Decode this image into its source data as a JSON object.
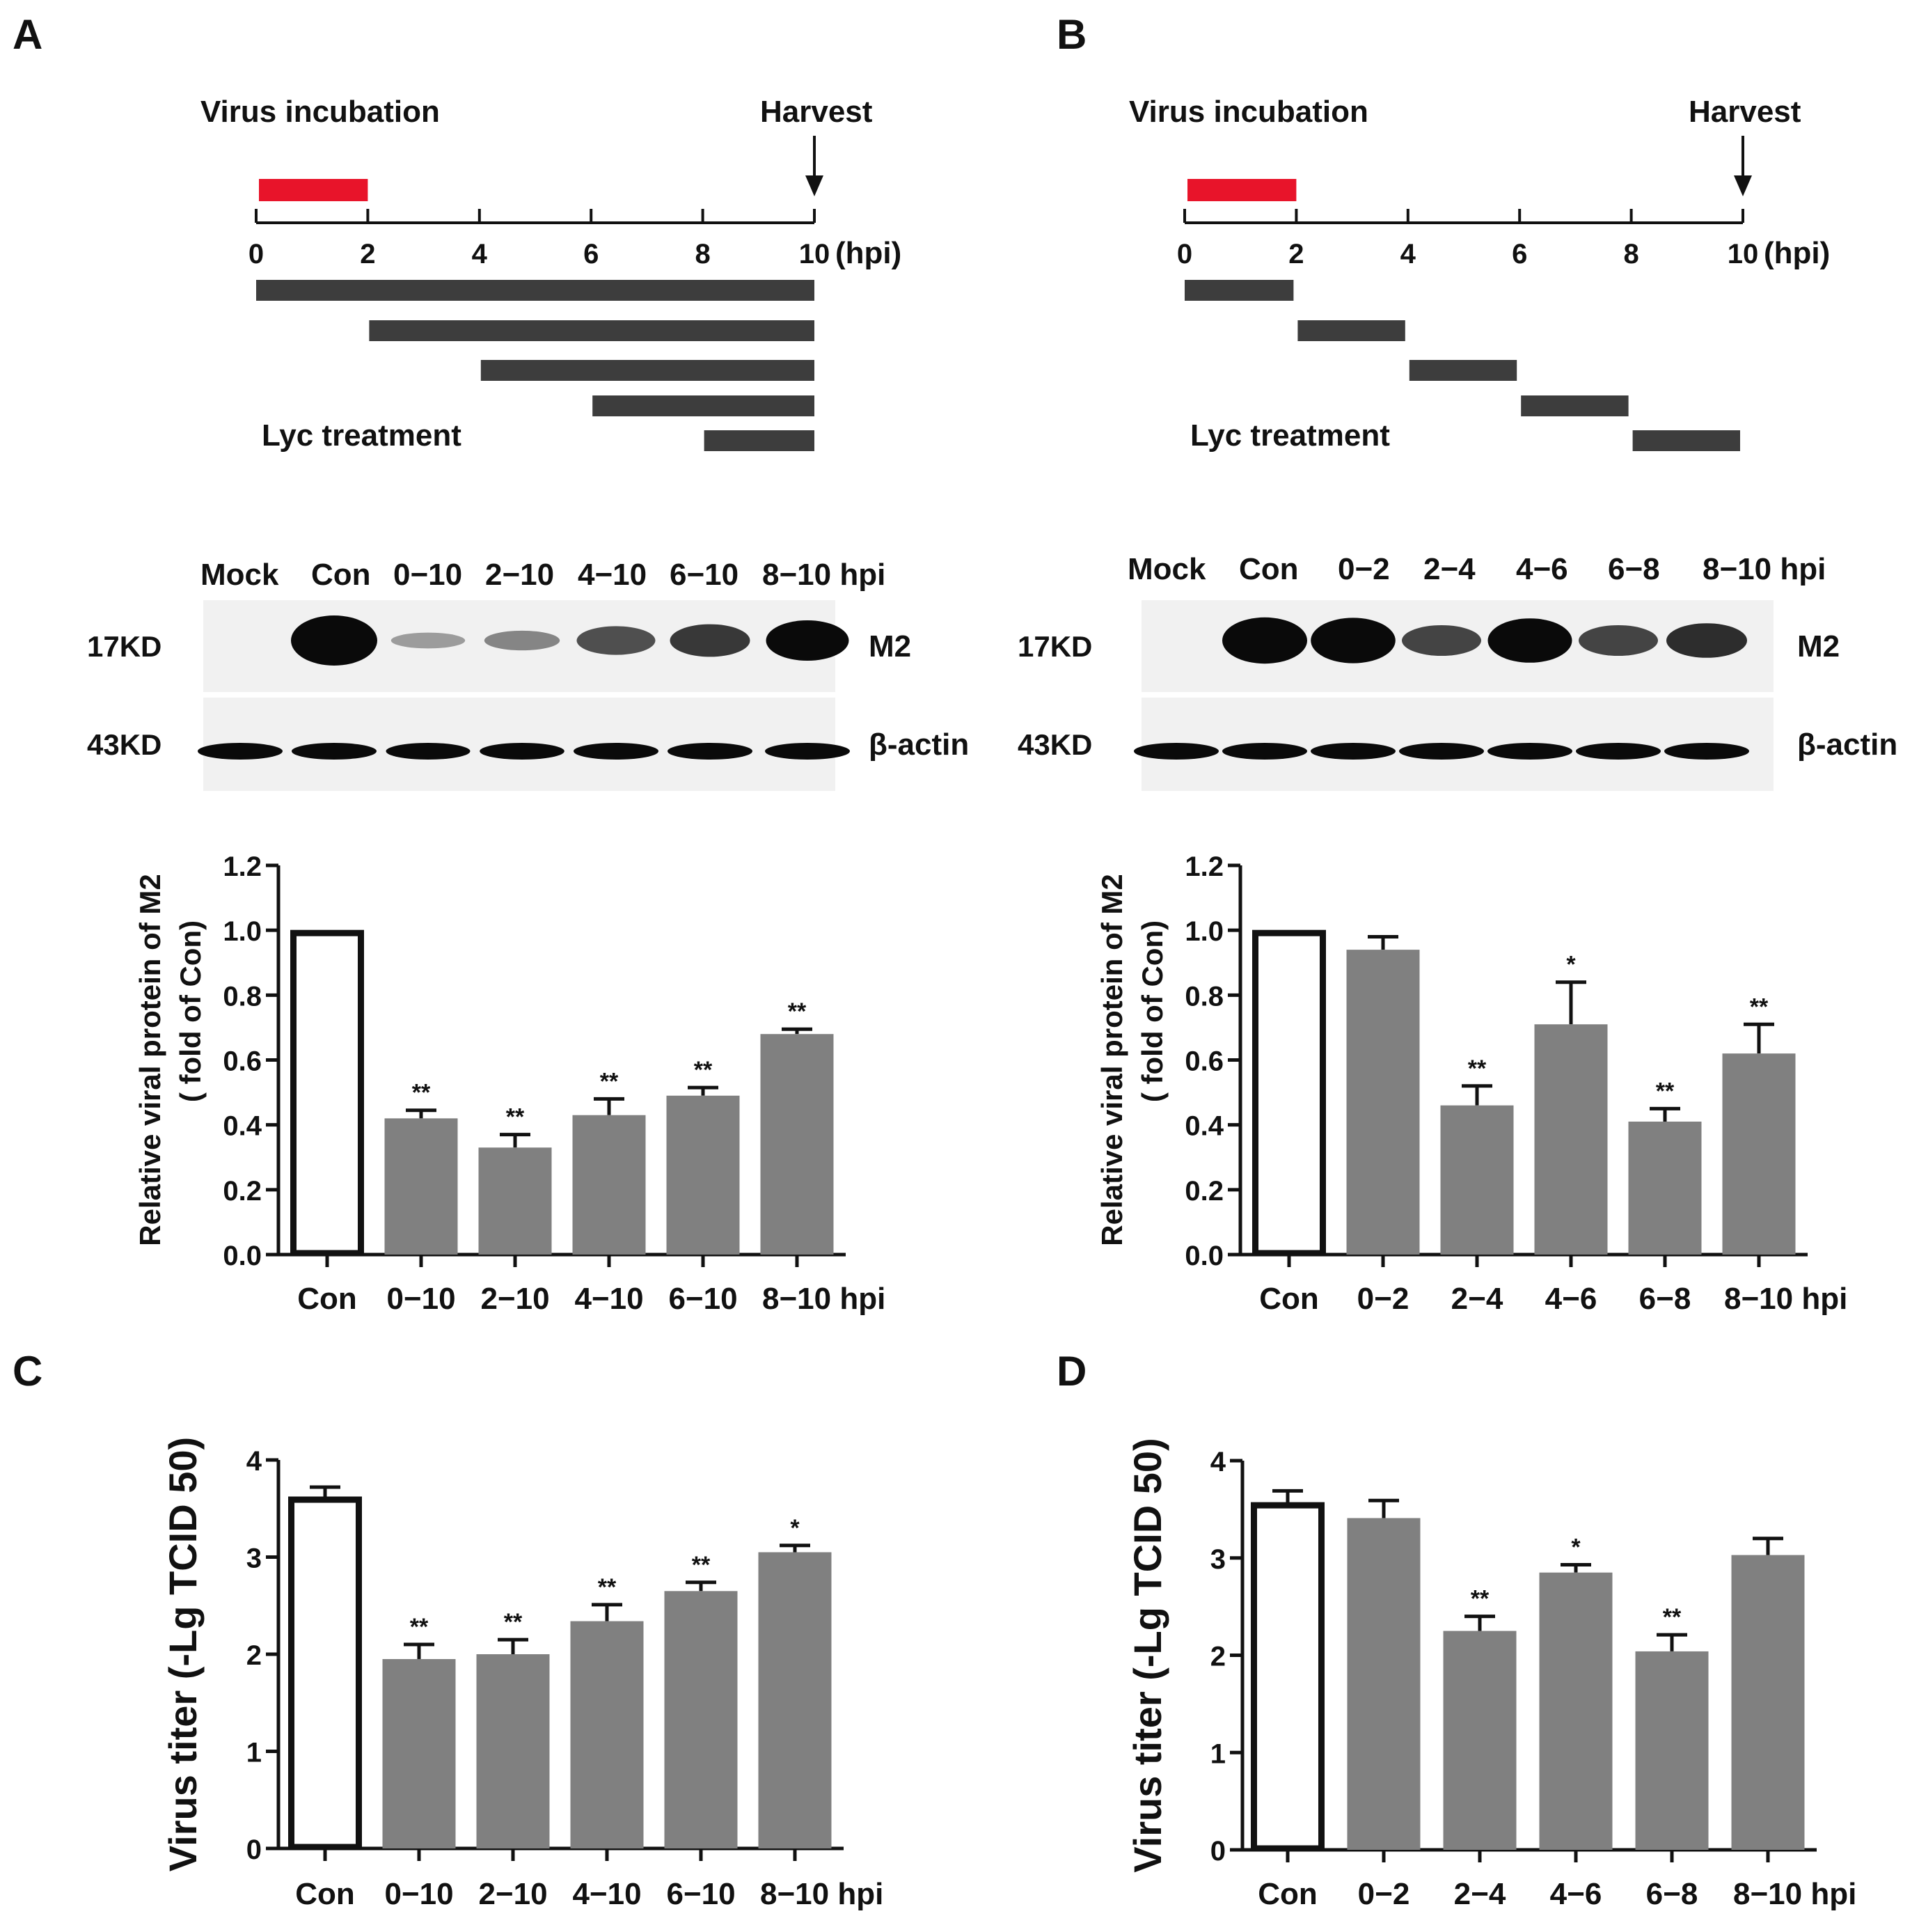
{
  "panel_letters": [
    "A",
    "B",
    "C",
    "D"
  ],
  "colors": {
    "incubation_bar": "#e8142a",
    "treatment_bar": "#3d3d3d",
    "bar_fill": "#808080",
    "control_fill": "#ffffff",
    "blot_background": "#f1f1f1",
    "band": "#0a0a0a",
    "axis": "#111111"
  },
  "timelines": [
    {
      "panel": "A",
      "incubation_label": "Virus incubation",
      "harvest_label": "Harvest",
      "unit_label": "(hpi)",
      "ticks": [
        "0",
        "2",
        "4",
        "6",
        "8",
        "10"
      ],
      "incubation_window": [
        0,
        2
      ],
      "treatment_label": "Lyc treatment",
      "treatments": [
        [
          0,
          10
        ],
        [
          2,
          10
        ],
        [
          4,
          10
        ],
        [
          6,
          10
        ],
        [
          8,
          10
        ]
      ]
    },
    {
      "panel": "B",
      "incubation_label": "Virus incubation",
      "harvest_label": "Harvest",
      "unit_label": "(hpi)",
      "ticks": [
        "0",
        "2",
        "4",
        "6",
        "8",
        "10"
      ],
      "incubation_window": [
        0,
        2
      ],
      "treatment_label": "Lyc treatment",
      "treatments": [
        [
          0,
          2
        ],
        [
          2,
          4
        ],
        [
          4,
          6
        ],
        [
          6,
          8
        ],
        [
          8,
          10
        ]
      ]
    }
  ],
  "blots": [
    {
      "panel": "A",
      "lane_labels": [
        "Mock",
        "Con",
        "0−10",
        "2−10",
        "4−10",
        "6−10",
        "8−10 hpi"
      ],
      "rows": [
        {
          "size_label": "17KD",
          "protein_label": "M2",
          "intensities": [
            0,
            1.0,
            0.12,
            0.22,
            0.45,
            0.55,
            0.75
          ]
        },
        {
          "size_label": "43KD",
          "protein_label": "β-actin",
          "intensities": [
            0.9,
            0.9,
            0.85,
            0.88,
            0.9,
            0.9,
            0.9
          ]
        }
      ]
    },
    {
      "panel": "B",
      "lane_labels": [
        "Mock",
        "Con",
        "0−2",
        "2−4",
        "4−6",
        "6−8",
        "8−10 hpi"
      ],
      "rows": [
        {
          "size_label": "17KD",
          "protein_label": "M2",
          "intensities": [
            0,
            0.9,
            0.88,
            0.5,
            0.85,
            0.5,
            0.6
          ]
        },
        {
          "size_label": "43KD",
          "protein_label": "β-actin",
          "intensities": [
            0.9,
            0.9,
            0.9,
            0.9,
            0.9,
            0.9,
            0.9
          ]
        }
      ]
    }
  ],
  "chart_data": [
    {
      "panel": "A",
      "type": "bar",
      "categories": [
        "Con",
        "0−10",
        "2−10",
        "4−10",
        "6−10",
        "8−10 hpi"
      ],
      "values": [
        1.0,
        0.42,
        0.33,
        0.43,
        0.49,
        0.68
      ],
      "errors": [
        0,
        0.025,
        0.04,
        0.05,
        0.025,
        0.015
      ],
      "significance": [
        "",
        "**",
        "**",
        "**",
        "**",
        "**"
      ],
      "ylabel_line1": "Relative viral protein of M2",
      "ylabel_line2": "( fold of Con)",
      "ylim": [
        0,
        1.2
      ],
      "yticks": [
        "0.0",
        "0.2",
        "0.4",
        "0.6",
        "0.8",
        "1.0",
        "1.2"
      ],
      "yscale_top": 1.2,
      "grid": false
    },
    {
      "panel": "B",
      "type": "bar",
      "categories": [
        "Con",
        "0−2",
        "2−4",
        "4−6",
        "6−8",
        "8−10 hpi"
      ],
      "values": [
        1.0,
        0.94,
        0.46,
        0.71,
        0.41,
        0.62
      ],
      "errors": [
        0,
        0.04,
        0.06,
        0.13,
        0.04,
        0.09
      ],
      "significance": [
        "",
        "",
        "**",
        "*",
        "**",
        "**"
      ],
      "ylabel_line1": "Relative viral protein of M2",
      "ylabel_line2": "( fold of Con)",
      "ylim": [
        0,
        1.2
      ],
      "yticks": [
        "0.0",
        "0.2",
        "0.4",
        "0.6",
        "0.8",
        "1.0",
        "1.2"
      ],
      "yscale_top": 1.2,
      "grid": false
    },
    {
      "panel": "C",
      "type": "bar",
      "categories": [
        "Con",
        "0−10",
        "2−10",
        "4−10",
        "6−10",
        "8−10 hpi"
      ],
      "values": [
        3.62,
        1.95,
        2.0,
        2.34,
        2.65,
        3.05
      ],
      "errors": [
        0.1,
        0.15,
        0.15,
        0.17,
        0.09,
        0.07
      ],
      "significance": [
        "",
        "**",
        "**",
        "**",
        "**",
        "*"
      ],
      "ylabel_line1": "Virus titer (-Lg TCID 50)",
      "ylabel_line2": "",
      "ylim": [
        0,
        4
      ],
      "yticks": [
        "0",
        "1",
        "2",
        "3",
        "4"
      ],
      "yscale_top": 4,
      "grid": false
    },
    {
      "panel": "D",
      "type": "bar",
      "categories": [
        "Con",
        "0−2",
        "2−4",
        "4−6",
        "6−8",
        "8−10 hpi"
      ],
      "values": [
        3.57,
        3.41,
        2.25,
        2.85,
        2.04,
        3.03
      ],
      "errors": [
        0.12,
        0.18,
        0.15,
        0.08,
        0.17,
        0.17
      ],
      "significance": [
        "",
        "",
        "**",
        "*",
        "**",
        ""
      ],
      "ylabel_line1": "Virus titer (-Lg TCID 50)",
      "ylabel_line2": "",
      "ylim": [
        0,
        4
      ],
      "yticks": [
        "0",
        "1",
        "2",
        "3",
        "4"
      ],
      "yscale_top": 4,
      "grid": false
    }
  ]
}
